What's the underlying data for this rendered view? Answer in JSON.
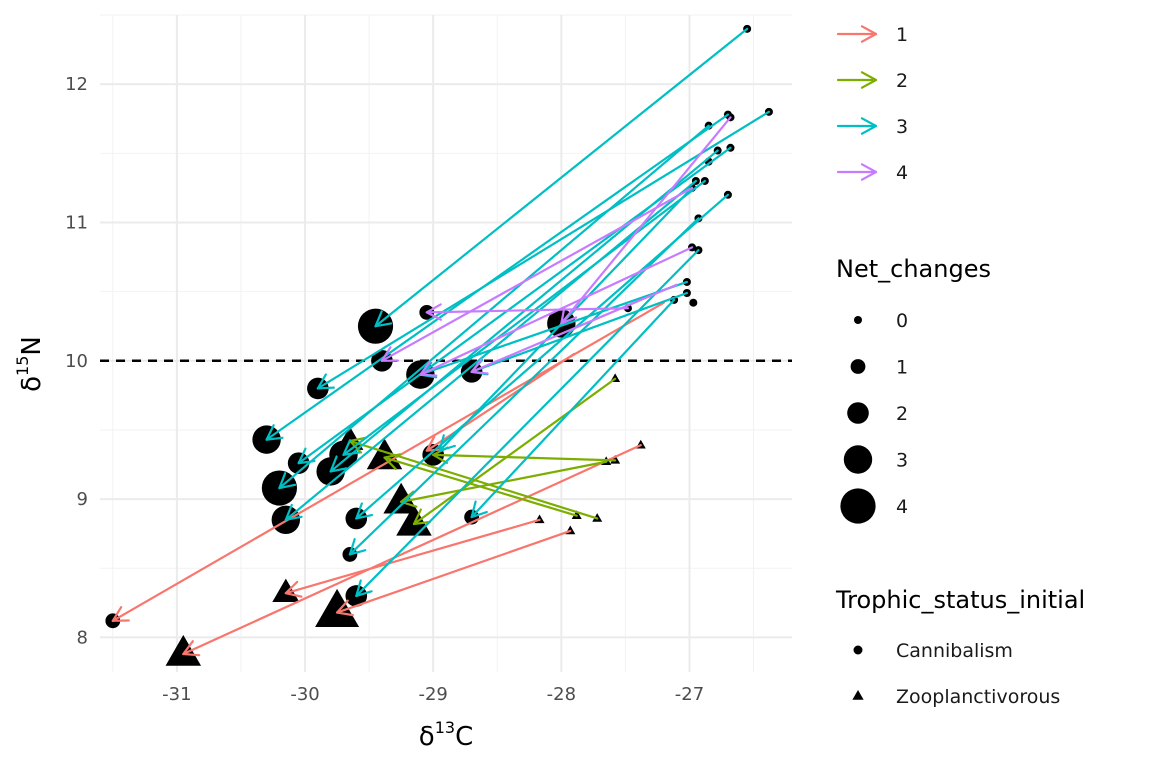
{
  "chart_data": {
    "type": "scatter",
    "title": "",
    "xlabel_base": "δ",
    "xlabel_sup": "13",
    "xlabel_elem": "C",
    "ylabel_base": "δ",
    "ylabel_sup": "15",
    "ylabel_elem": "N",
    "xlim": [
      -31.6,
      -26.2
    ],
    "ylim": [
      7.75,
      12.5
    ],
    "xticks": [
      -31,
      -30,
      -29,
      -28,
      -27
    ],
    "yticks": [
      8,
      9,
      10,
      11,
      12
    ],
    "xtick_labels": [
      "-31",
      "-30",
      "-29",
      "-28",
      "-27"
    ],
    "ytick_labels": [
      "8",
      "9",
      "10",
      "11",
      "12"
    ],
    "hline": 10,
    "grid": true,
    "legend_position": "right",
    "color_legend": {
      "title": "",
      "entries": [
        {
          "label": "1",
          "color": "#F8766D"
        },
        {
          "label": "2",
          "color": "#7CAE00"
        },
        {
          "label": "3",
          "color": "#00BFC4"
        },
        {
          "label": "4",
          "color": "#C77CFF"
        }
      ]
    },
    "size_legend": {
      "title": "Net_changes",
      "entries": [
        {
          "label": "0",
          "value": 0
        },
        {
          "label": "1",
          "value": 1
        },
        {
          "label": "2",
          "value": 2
        },
        {
          "label": "3",
          "value": 3
        },
        {
          "label": "4",
          "value": 4
        }
      ]
    },
    "shape_legend": {
      "title": "Trophic_status_initial",
      "entries": [
        {
          "label": "Cannibalism",
          "shape": "circle"
        },
        {
          "label": "Zooplanctivorous",
          "shape": "triangle"
        }
      ]
    },
    "colors": {
      "1": "#F8766D",
      "2": "#7CAE00",
      "3": "#00BFC4",
      "4": "#C77CFF"
    },
    "points": [
      {
        "x": -31.5,
        "y": 8.12,
        "size": 1,
        "shape": "circle"
      },
      {
        "x": -30.95,
        "y": 7.88,
        "size": 3,
        "shape": "triangle"
      },
      {
        "x": -30.3,
        "y": 9.43,
        "size": 3,
        "shape": "circle"
      },
      {
        "x": -30.2,
        "y": 9.08,
        "size": 4,
        "shape": "circle"
      },
      {
        "x": -30.15,
        "y": 8.85,
        "size": 3,
        "shape": "circle"
      },
      {
        "x": -30.15,
        "y": 8.32,
        "size": 2,
        "shape": "triangle"
      },
      {
        "x": -30.05,
        "y": 9.26,
        "size": 2,
        "shape": "circle"
      },
      {
        "x": -29.9,
        "y": 9.8,
        "size": 2,
        "shape": "circle"
      },
      {
        "x": -29.8,
        "y": 9.2,
        "size": 3,
        "shape": "circle"
      },
      {
        "x": -29.7,
        "y": 9.32,
        "size": 3,
        "shape": "circle"
      },
      {
        "x": -29.75,
        "y": 8.18,
        "size": 4,
        "shape": "triangle"
      },
      {
        "x": -29.65,
        "y": 9.42,
        "size": 2,
        "shape": "triangle"
      },
      {
        "x": -29.6,
        "y": 8.86,
        "size": 2,
        "shape": "circle"
      },
      {
        "x": -29.65,
        "y": 8.6,
        "size": 1,
        "shape": "circle"
      },
      {
        "x": -29.6,
        "y": 8.3,
        "size": 2,
        "shape": "circle"
      },
      {
        "x": -29.45,
        "y": 10.25,
        "size": 4,
        "shape": "circle"
      },
      {
        "x": -29.4,
        "y": 10.0,
        "size": 2,
        "shape": "circle"
      },
      {
        "x": -29.38,
        "y": 9.3,
        "size": 3,
        "shape": "triangle"
      },
      {
        "x": -29.25,
        "y": 8.98,
        "size": 3,
        "shape": "triangle"
      },
      {
        "x": -29.15,
        "y": 8.82,
        "size": 3,
        "shape": "triangle"
      },
      {
        "x": -29.1,
        "y": 9.9,
        "size": 3,
        "shape": "circle"
      },
      {
        "x": -29.05,
        "y": 10.35,
        "size": 1,
        "shape": "circle"
      },
      {
        "x": -29.0,
        "y": 9.32,
        "size": 2,
        "shape": "circle"
      },
      {
        "x": -28.7,
        "y": 8.87,
        "size": 1,
        "shape": "circle"
      },
      {
        "x": -28.7,
        "y": 9.92,
        "size": 2,
        "shape": "circle"
      },
      {
        "x": -28.0,
        "y": 10.27,
        "size": 3,
        "shape": "circle"
      },
      {
        "x": -26.55,
        "y": 12.4,
        "size": 0,
        "shape": "circle"
      },
      {
        "x": -26.38,
        "y": 11.8,
        "size": 0,
        "shape": "circle"
      },
      {
        "x": -26.7,
        "y": 11.78,
        "size": 0,
        "shape": "circle"
      },
      {
        "x": -26.68,
        "y": 11.76,
        "size": 0,
        "shape": "circle"
      },
      {
        "x": -26.85,
        "y": 11.7,
        "size": 0,
        "shape": "circle"
      },
      {
        "x": -26.68,
        "y": 11.54,
        "size": 0,
        "shape": "circle"
      },
      {
        "x": -26.78,
        "y": 11.52,
        "size": 0,
        "shape": "circle"
      },
      {
        "x": -26.85,
        "y": 11.44,
        "size": 0,
        "shape": "circle"
      },
      {
        "x": -26.95,
        "y": 11.3,
        "size": 0,
        "shape": "circle"
      },
      {
        "x": -26.88,
        "y": 11.3,
        "size": 0,
        "shape": "circle"
      },
      {
        "x": -26.98,
        "y": 11.25,
        "size": 0,
        "shape": "circle"
      },
      {
        "x": -26.7,
        "y": 11.2,
        "size": 0,
        "shape": "circle"
      },
      {
        "x": -26.93,
        "y": 11.03,
        "size": 0,
        "shape": "circle"
      },
      {
        "x": -26.98,
        "y": 10.82,
        "size": 0,
        "shape": "circle"
      },
      {
        "x": -26.93,
        "y": 10.8,
        "size": 0,
        "shape": "circle"
      },
      {
        "x": -27.02,
        "y": 10.57,
        "size": 0,
        "shape": "circle"
      },
      {
        "x": -27.02,
        "y": 10.49,
        "size": 0,
        "shape": "circle"
      },
      {
        "x": -27.12,
        "y": 10.44,
        "size": 0,
        "shape": "circle"
      },
      {
        "x": -26.97,
        "y": 10.42,
        "size": 0,
        "shape": "circle"
      },
      {
        "x": -27.48,
        "y": 10.38,
        "size": 0,
        "shape": "circle"
      },
      {
        "x": -27.58,
        "y": 9.87,
        "size": 0,
        "shape": "triangle"
      },
      {
        "x": -27.38,
        "y": 9.39,
        "size": 0,
        "shape": "triangle"
      },
      {
        "x": -27.58,
        "y": 9.28,
        "size": 0,
        "shape": "triangle"
      },
      {
        "x": -27.65,
        "y": 9.27,
        "size": 0,
        "shape": "triangle"
      },
      {
        "x": -27.88,
        "y": 8.88,
        "size": 0,
        "shape": "triangle"
      },
      {
        "x": -27.72,
        "y": 8.86,
        "size": 0,
        "shape": "triangle"
      },
      {
        "x": -28.17,
        "y": 8.85,
        "size": 0,
        "shape": "triangle"
      },
      {
        "x": -27.93,
        "y": 8.77,
        "size": 0,
        "shape": "triangle"
      }
    ],
    "arrows": [
      {
        "group": "1",
        "x0": -27.2,
        "y0": 10.42,
        "x1": -31.5,
        "y1": 8.12
      },
      {
        "group": "1",
        "x0": -27.38,
        "y0": 9.39,
        "x1": -30.95,
        "y1": 7.88
      },
      {
        "group": "1",
        "x0": -28.17,
        "y0": 8.85,
        "x1": -30.15,
        "y1": 8.32
      },
      {
        "group": "1",
        "x0": -27.93,
        "y0": 8.77,
        "x1": -29.75,
        "y1": 8.18
      },
      {
        "group": "1",
        "x0": -27.9,
        "y0": 10.05,
        "x1": -29.05,
        "y1": 9.35
      },
      {
        "group": "2",
        "x0": -27.58,
        "y0": 9.87,
        "x1": -29.15,
        "y1": 8.82
      },
      {
        "group": "2",
        "x0": -27.58,
        "y0": 9.28,
        "x1": -29.0,
        "y1": 9.32
      },
      {
        "group": "2",
        "x0": -27.72,
        "y0": 8.86,
        "x1": -29.65,
        "y1": 9.42
      },
      {
        "group": "2",
        "x0": -27.88,
        "y0": 8.88,
        "x1": -29.38,
        "y1": 9.3
      },
      {
        "group": "2",
        "x0": -27.65,
        "y0": 9.27,
        "x1": -29.25,
        "y1": 8.98
      },
      {
        "group": "3",
        "x0": -26.55,
        "y0": 12.4,
        "x1": -29.45,
        "y1": 10.25
      },
      {
        "group": "3",
        "x0": -26.38,
        "y0": 11.8,
        "x1": -29.9,
        "y1": 9.8
      },
      {
        "group": "3",
        "x0": -26.7,
        "y0": 11.78,
        "x1": -30.3,
        "y1": 9.43
      },
      {
        "group": "3",
        "x0": -26.85,
        "y0": 11.7,
        "x1": -30.2,
        "y1": 9.08
      },
      {
        "group": "3",
        "x0": -26.68,
        "y0": 11.54,
        "x1": -30.05,
        "y1": 9.26
      },
      {
        "group": "3",
        "x0": -26.78,
        "y0": 11.52,
        "x1": -29.8,
        "y1": 9.2
      },
      {
        "group": "3",
        "x0": -26.88,
        "y0": 11.3,
        "x1": -29.7,
        "y1": 9.32
      },
      {
        "group": "3",
        "x0": -26.95,
        "y0": 11.3,
        "x1": -30.15,
        "y1": 8.85
      },
      {
        "group": "3",
        "x0": -26.7,
        "y0": 11.2,
        "x1": -29.6,
        "y1": 8.86
      },
      {
        "group": "3",
        "x0": -26.93,
        "y0": 11.03,
        "x1": -29.65,
        "y1": 8.6
      },
      {
        "group": "3",
        "x0": -26.93,
        "y0": 10.8,
        "x1": -29.6,
        "y1": 8.3
      },
      {
        "group": "3",
        "x0": -27.02,
        "y0": 10.57,
        "x1": -29.1,
        "y1": 9.9
      },
      {
        "group": "3",
        "x0": -27.02,
        "y0": 10.49,
        "x1": -28.7,
        "y1": 9.92
      },
      {
        "group": "3",
        "x0": -27.12,
        "y0": 10.44,
        "x1": -28.7,
        "y1": 8.87
      },
      {
        "group": "3",
        "x0": -26.98,
        "y0": 11.25,
        "x1": -28.95,
        "y1": 9.35
      },
      {
        "group": "4",
        "x0": -26.68,
        "y0": 11.76,
        "x1": -28.0,
        "y1": 10.27
      },
      {
        "group": "4",
        "x0": -26.98,
        "y0": 11.25,
        "x1": -29.4,
        "y1": 10.0
      },
      {
        "group": "4",
        "x0": -26.98,
        "y0": 10.82,
        "x1": -29.1,
        "y1": 9.9
      },
      {
        "group": "4",
        "x0": -27.48,
        "y0": 10.38,
        "x1": -29.05,
        "y1": 10.35
      },
      {
        "group": "4",
        "x0": -27.1,
        "y0": 10.55,
        "x1": -28.7,
        "y1": 9.92
      }
    ]
  }
}
